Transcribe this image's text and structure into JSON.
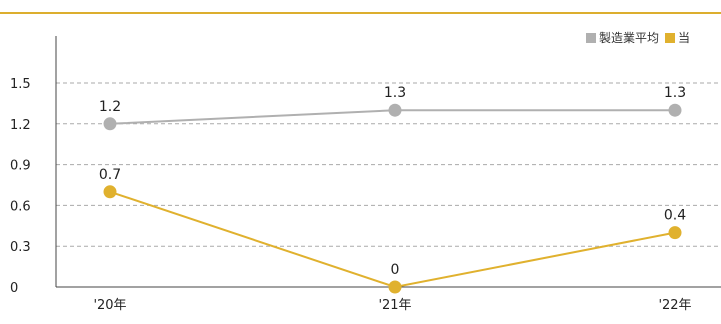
{
  "colors": {
    "accent_rule": "#dcae2e",
    "axis": "#444444",
    "grid": "#aaaaaa"
  },
  "chart_data": {
    "type": "line",
    "title": "",
    "xlabel": "",
    "ylabel": "",
    "categories": [
      "'20年",
      "'21年",
      "'22年"
    ],
    "yticks": [
      "0",
      "0.3",
      "0.6",
      "0.9",
      "1.2",
      "1.5"
    ],
    "ylim": [
      0,
      1.5
    ],
    "grid": true,
    "legend_position": "top-right",
    "series": [
      {
        "name": "製造業平均",
        "color": "#b0b0b0",
        "values": [
          1.2,
          1.3,
          1.3
        ],
        "labels": [
          "1.2",
          "1.3",
          "1.3"
        ]
      },
      {
        "name": "当",
        "color": "#e0b12e",
        "values": [
          0.7,
          0,
          0.4
        ],
        "labels": [
          "0.7",
          "0",
          "0.4"
        ]
      }
    ]
  }
}
